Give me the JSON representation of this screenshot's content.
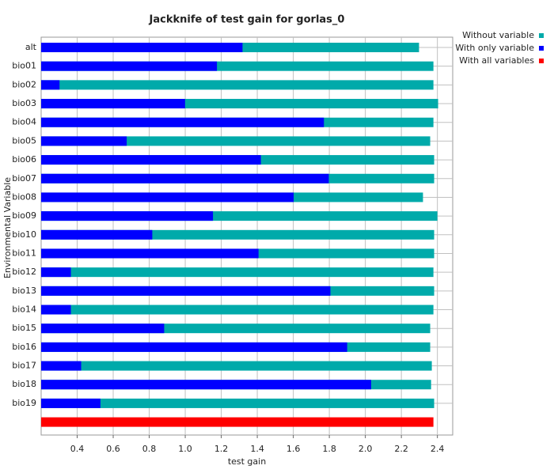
{
  "chart_data": {
    "type": "bar",
    "orientation": "horizontal",
    "title": "Jackknife of test gain for gorlas_0",
    "x_label": "test gain",
    "y_label": "Environmental Variable",
    "categories": [
      "alt",
      "bio01",
      "bio02",
      "bio03",
      "bio04",
      "bio05",
      "bio06",
      "bio07",
      "bio08",
      "bio09",
      "bio10",
      "bio11",
      "bio12",
      "bio13",
      "bio14",
      "bio15",
      "bio16",
      "bio17",
      "bio18",
      "bio19",
      null
    ],
    "series": [
      {
        "name": "Without variable",
        "color": "#00aaaa",
        "values": [
          2.298,
          2.378,
          2.378,
          2.404,
          2.378,
          2.36,
          2.382,
          2.382,
          2.32,
          2.4,
          2.382,
          2.382,
          2.378,
          2.382,
          2.378,
          2.36,
          2.36,
          2.369,
          2.365,
          2.382,
          null
        ]
      },
      {
        "name": "With only variable",
        "color": "#0000ff",
        "values": [
          1.318,
          1.176,
          0.302,
          0.999,
          1.77,
          0.675,
          1.42,
          1.797,
          1.602,
          1.154,
          0.817,
          1.407,
          0.365,
          1.806,
          0.365,
          0.883,
          1.899,
          0.422,
          2.032,
          0.529,
          null
        ]
      },
      {
        "name": "With all variables",
        "color": "#ff0000",
        "values": [
          null,
          null,
          null,
          null,
          null,
          null,
          null,
          null,
          null,
          null,
          null,
          null,
          null,
          null,
          null,
          null,
          null,
          null,
          null,
          null,
          2.378
        ]
      }
    ],
    "xlim": [
      0.2,
      2.485
    ],
    "xticks": [
      0.4,
      0.6,
      0.8,
      {
        "value": 1.0,
        "label": "1.0"
      },
      1.2,
      1.4,
      1.6,
      1.8,
      {
        "value": 2.0,
        "label": "2.0"
      },
      2.2,
      2.4
    ],
    "grid": true,
    "legend": "top-right"
  }
}
